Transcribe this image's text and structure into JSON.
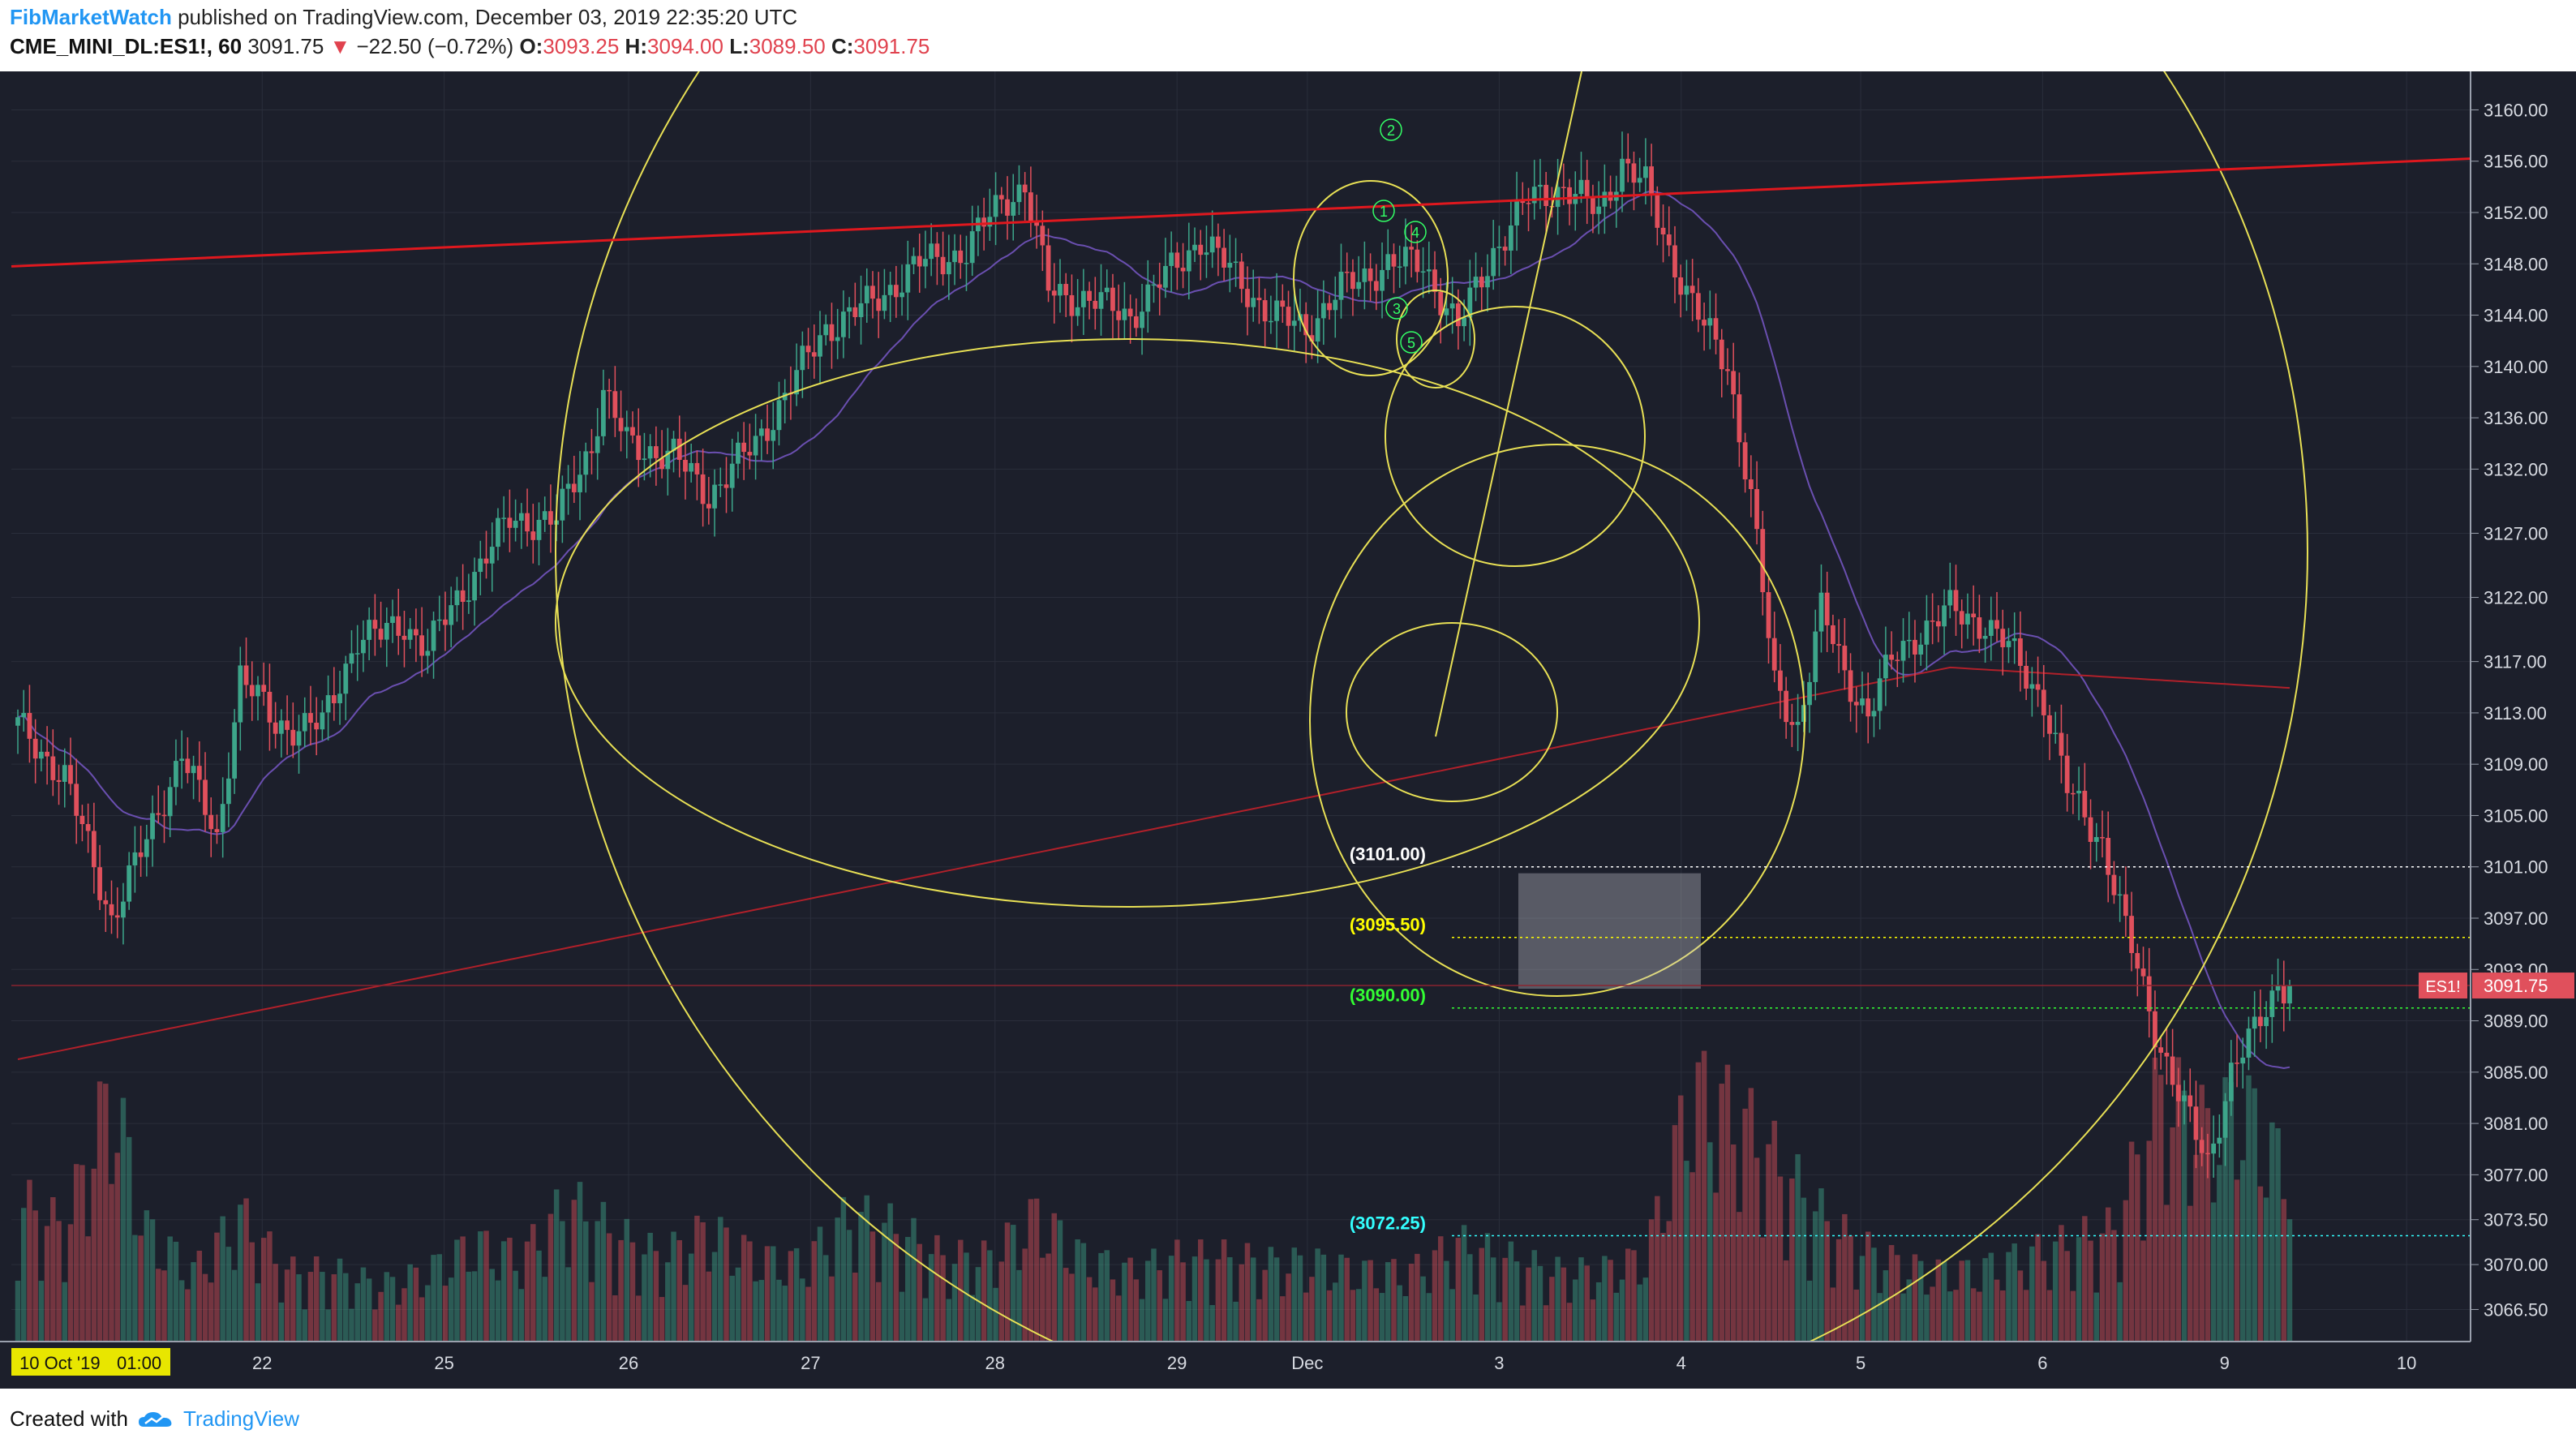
{
  "header": {
    "author": "FibMarketWatch",
    "published_text": "published on TradingView.com, December 03, 2019 22:35:20 UTC",
    "symbol": "CME_MINI_DL:ES1!, 60",
    "last": "3091.75",
    "change_arrow": "▼",
    "change": "−22.50 (−0.72%)",
    "o_label": "O:",
    "o_value": "3093.25",
    "h_label": "H:",
    "h_value": "3094.00",
    "l_label": "L:",
    "l_value": "3089.50",
    "c_label": "C:",
    "c_value": "3091.75"
  },
  "footer": {
    "created_text": "Created with",
    "brand": "TradingView"
  },
  "colors": {
    "background": "#1c1f2b",
    "grid": "#2a2e3b",
    "up": "#3da58a",
    "down": "#e0505c",
    "fib_spiral": "#e8e055",
    "trendline": "#e0181e",
    "ma_purple": "#6a4fb0",
    "ma_red": "#b0202a",
    "level_white": "#ffffff",
    "level_yellow": "#ffff00",
    "level_green": "#33ff33",
    "level_cyan": "#33ffff"
  },
  "chart_data": {
    "type": "candlestick",
    "symbol": "ES1!",
    "interval": "60",
    "y_range": [
      3064,
      3163
    ],
    "y_ticks": [
      "3160.00",
      "3156.00",
      "3152.00",
      "3148.00",
      "3144.00",
      "3140.00",
      "3136.00",
      "3132.00",
      "3127.00",
      "3122.00",
      "3117.00",
      "3113.00",
      "3109.00",
      "3105.00",
      "3101.00",
      "3097.00",
      "3093.00",
      "3089.00",
      "3085.00",
      "3081.00",
      "3077.00",
      "3073.50",
      "3070.00",
      "3066.50"
    ],
    "x_ticks": [
      "10 Oct '19",
      "01:00",
      "22",
      "25",
      "26",
      "27",
      "28",
      "29",
      "Dec",
      "3",
      "4",
      "5",
      "6",
      "9",
      "10"
    ],
    "last_price": {
      "badge": "ES1!",
      "value": "3091.75",
      "price": 3091.75
    },
    "levels": [
      {
        "label": "(3101.00)",
        "price": 3101.0,
        "color": "#ffffff"
      },
      {
        "label": "(3095.50)",
        "price": 3095.5,
        "color": "#ffff00"
      },
      {
        "label": "(3090.00)",
        "price": 3090.0,
        "color": "#33ff33"
      },
      {
        "label": "(3072.25)",
        "price": 3072.25,
        "color": "#33ffff"
      }
    ],
    "wave_labels": [
      "1",
      "2",
      "3",
      "4",
      "5"
    ],
    "trendline": {
      "from_price": 3147.8,
      "to_price": 3156.2
    },
    "box": {
      "top_price": 3100.5,
      "bottom_price": 3091.5
    },
    "waypoints": [
      [
        0,
        3112
      ],
      [
        8,
        3108
      ],
      [
        16,
        3097
      ],
      [
        22,
        3103
      ],
      [
        28,
        3110
      ],
      [
        34,
        3103
      ],
      [
        38,
        3116
      ],
      [
        44,
        3112
      ],
      [
        52,
        3112
      ],
      [
        58,
        3119
      ],
      [
        62,
        3119
      ],
      [
        66,
        3120
      ],
      [
        70,
        3118
      ],
      [
        78,
        3124
      ],
      [
        84,
        3128
      ],
      [
        92,
        3128
      ],
      [
        98,
        3134
      ],
      [
        100,
        3138
      ],
      [
        104,
        3134
      ],
      [
        112,
        3133
      ],
      [
        118,
        3130
      ],
      [
        126,
        3134
      ],
      [
        134,
        3140
      ],
      [
        138,
        3143
      ],
      [
        146,
        3145
      ],
      [
        154,
        3148
      ],
      [
        162,
        3149
      ],
      [
        168,
        3153
      ],
      [
        172,
        3154
      ],
      [
        176,
        3146
      ],
      [
        184,
        3145
      ],
      [
        190,
        3144
      ],
      [
        196,
        3147
      ],
      [
        202,
        3150
      ],
      [
        208,
        3147
      ],
      [
        214,
        3144
      ],
      [
        220,
        3143
      ],
      [
        226,
        3146
      ],
      [
        234,
        3148
      ],
      [
        240,
        3148
      ],
      [
        246,
        3143
      ],
      [
        252,
        3149
      ],
      [
        258,
        3153
      ],
      [
        264,
        3154
      ],
      [
        270,
        3152
      ],
      [
        274,
        3156
      ],
      [
        278,
        3154
      ],
      [
        282,
        3149
      ],
      [
        288,
        3143
      ],
      [
        292,
        3140
      ],
      [
        296,
        3130
      ],
      [
        300,
        3115
      ],
      [
        304,
        3112
      ],
      [
        308,
        3121
      ],
      [
        312,
        3116
      ],
      [
        316,
        3113
      ],
      [
        320,
        3117
      ],
      [
        324,
        3119
      ],
      [
        330,
        3121
      ],
      [
        336,
        3120
      ],
      [
        340,
        3118
      ],
      [
        346,
        3114
      ],
      [
        350,
        3107
      ],
      [
        356,
        3103
      ],
      [
        360,
        3096
      ],
      [
        366,
        3087
      ],
      [
        370,
        3082
      ],
      [
        374,
        3078
      ],
      [
        378,
        3085
      ],
      [
        382,
        3088
      ],
      [
        386,
        3092
      ],
      [
        388,
        3091.75
      ]
    ],
    "volumes": [
      [
        0,
        50
      ],
      [
        8,
        40
      ],
      [
        16,
        90
      ],
      [
        22,
        40
      ],
      [
        30,
        25
      ],
      [
        38,
        45
      ],
      [
        46,
        25
      ],
      [
        54,
        25
      ],
      [
        62,
        20
      ],
      [
        70,
        25
      ],
      [
        78,
        35
      ],
      [
        86,
        30
      ],
      [
        94,
        50
      ],
      [
        102,
        38
      ],
      [
        110,
        30
      ],
      [
        118,
        40
      ],
      [
        126,
        30
      ],
      [
        134,
        28
      ],
      [
        142,
        45
      ],
      [
        150,
        40
      ],
      [
        158,
        30
      ],
      [
        166,
        30
      ],
      [
        174,
        45
      ],
      [
        182,
        30
      ],
      [
        190,
        25
      ],
      [
        198,
        30
      ],
      [
        206,
        30
      ],
      [
        214,
        28
      ],
      [
        222,
        28
      ],
      [
        230,
        25
      ],
      [
        238,
        25
      ],
      [
        246,
        35
      ],
      [
        254,
        30
      ],
      [
        262,
        25
      ],
      [
        270,
        25
      ],
      [
        278,
        30
      ],
      [
        286,
        90
      ],
      [
        294,
        80
      ],
      [
        302,
        60
      ],
      [
        310,
        40
      ],
      [
        318,
        30
      ],
      [
        326,
        25
      ],
      [
        334,
        25
      ],
      [
        342,
        30
      ],
      [
        350,
        35
      ],
      [
        358,
        40
      ],
      [
        366,
        90
      ],
      [
        374,
        75
      ],
      [
        380,
        85
      ],
      [
        386,
        65
      ]
    ]
  }
}
